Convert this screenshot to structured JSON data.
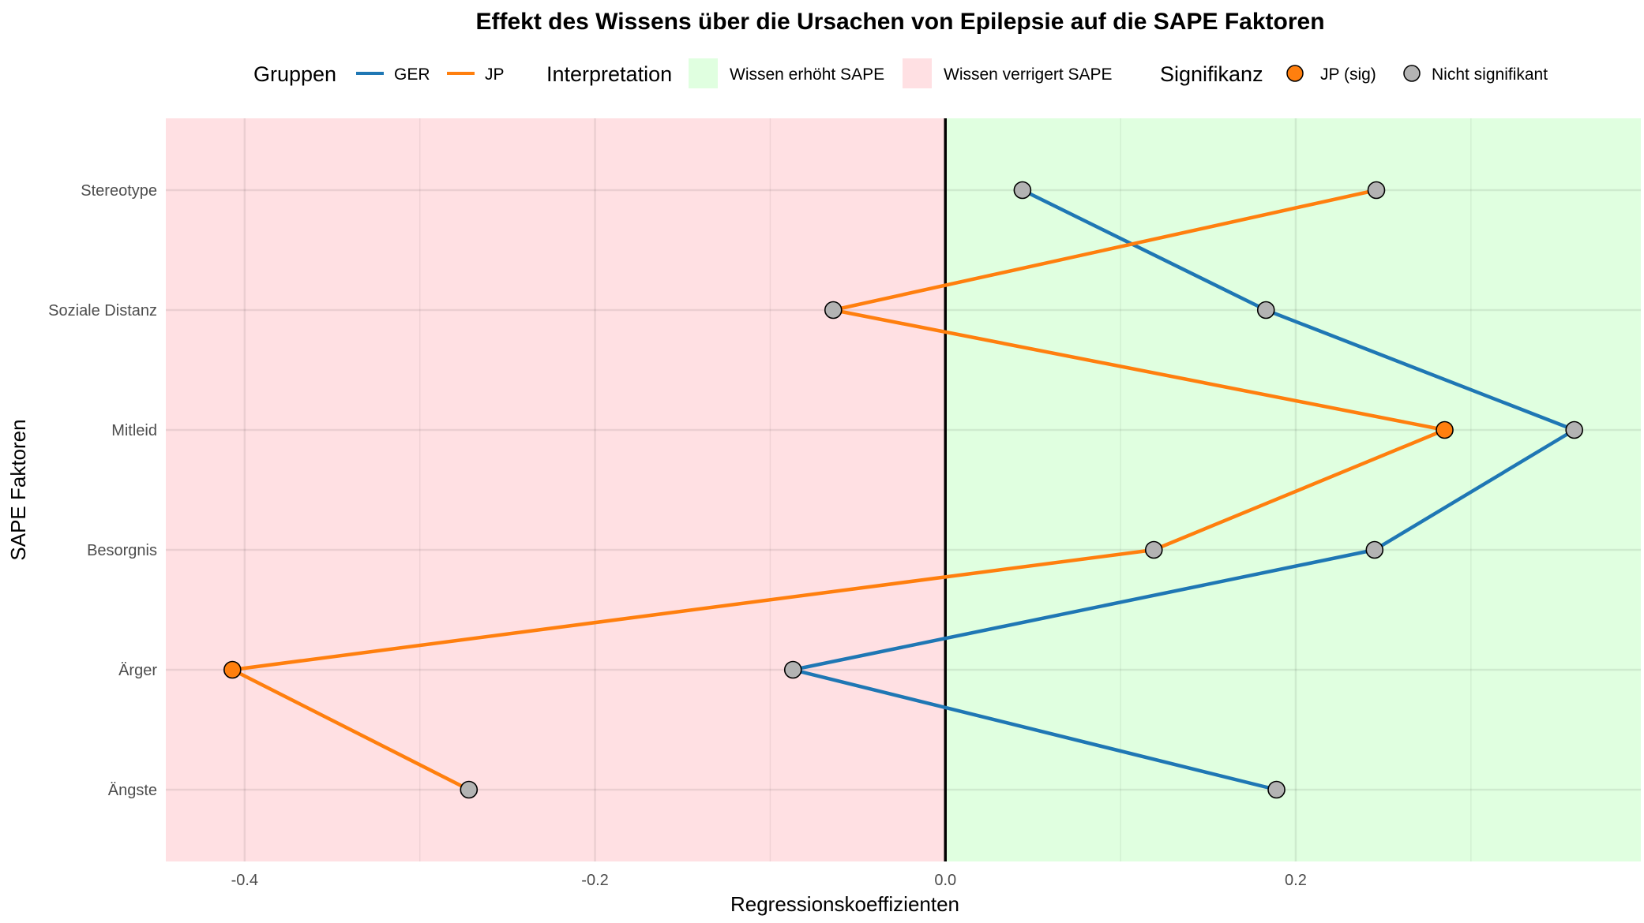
{
  "chart_data": {
    "type": "line",
    "title": "Effekt des Wissens über die Ursachen von Epilepsie auf die SAPE Faktoren",
    "xlabel": "Regressionskoeffizienten",
    "ylabel": "SAPE Faktoren",
    "xlim": [
      -0.445,
      0.397
    ],
    "x_ticks": [
      -0.4,
      -0.2,
      0.0,
      0.2
    ],
    "x_tick_labels": [
      "-0.4",
      "-0.2",
      "0.0",
      "0.2"
    ],
    "x_minor_ticks": [
      -0.3,
      -0.1,
      0.1,
      0.3
    ],
    "categories": [
      "Ängste",
      "Ärger",
      "Besorgnis",
      "Mitleid",
      "Soziale Distanz",
      "Stereotype"
    ],
    "series": [
      {
        "name": "GER",
        "color": "#1f77b4",
        "values": [
          0.189,
          -0.087,
          0.245,
          0.359,
          0.183,
          0.044
        ],
        "significant": [
          false,
          false,
          false,
          false,
          false,
          false
        ]
      },
      {
        "name": "JP",
        "color": "#ff7f0e",
        "values": [
          -0.272,
          -0.407,
          0.119,
          0.285,
          -0.064,
          0.246
        ],
        "significant": [
          false,
          true,
          false,
          true,
          false,
          false
        ]
      }
    ],
    "regions": [
      {
        "label": "Wissen erhöht SAPE",
        "from": 0.0,
        "to": 0.397,
        "color": "#e0ffe0"
      },
      {
        "label": "Wissen verrigert SAPE",
        "from": -0.445,
        "to": 0.0,
        "color": "#ffe0e3"
      }
    ],
    "reference_line": 0.0,
    "grid": true,
    "legend": {
      "position": "top",
      "groups_title": "Gruppen",
      "interpretation_title": "Interpretation",
      "significance_title": "Signifikanz",
      "sig_label": "JP (sig)",
      "nonsig_label": "Nicht signifikant",
      "sig_color": "#ff7f0e",
      "nonsig_color": "#b3b3b3"
    }
  }
}
